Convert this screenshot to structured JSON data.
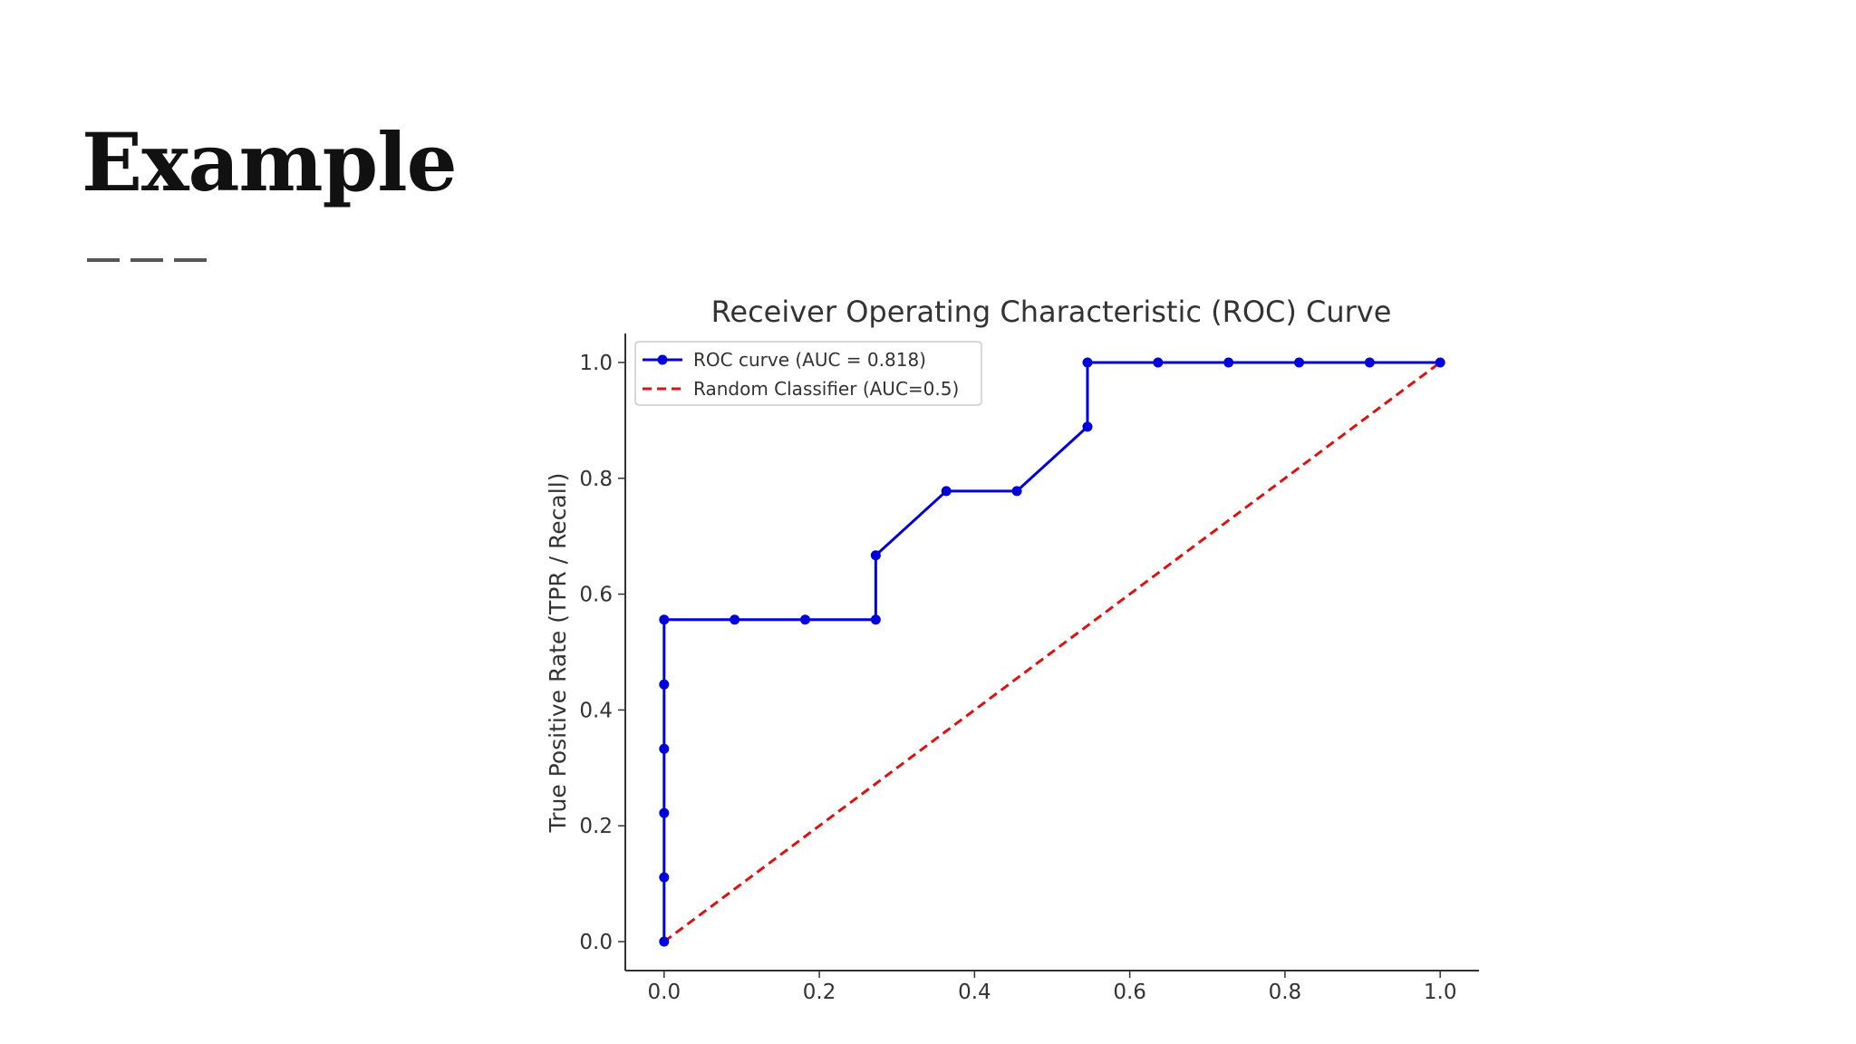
{
  "slide": {
    "title": "Example"
  },
  "chart_data": {
    "type": "line",
    "title": "Receiver Operating Characteristic (ROC) Curve",
    "xlabel": "",
    "ylabel": "True Positive Rate (TPR / Recall)",
    "xlim": [
      -0.05,
      1.05
    ],
    "ylim": [
      -0.05,
      1.05
    ],
    "xticks": [
      0.0,
      0.2,
      0.4,
      0.6,
      0.8,
      1.0
    ],
    "yticks": [
      0.0,
      0.2,
      0.4,
      0.6,
      0.8,
      1.0
    ],
    "grid": false,
    "legend_position": "top-left",
    "series": [
      {
        "name": "ROC curve (AUC = 0.818)",
        "color": "#0000dd",
        "style": "solid-with-markers",
        "x": [
          0.0,
          0.0,
          0.0,
          0.0,
          0.0,
          0.0,
          0.0909,
          0.1818,
          0.2727,
          0.2727,
          0.3636,
          0.4545,
          0.5455,
          0.5455,
          0.6364,
          0.7273,
          0.8182,
          0.9091,
          1.0
        ],
        "y": [
          0.0,
          0.111,
          0.222,
          0.333,
          0.444,
          0.556,
          0.556,
          0.556,
          0.556,
          0.667,
          0.778,
          0.778,
          0.889,
          1.0,
          1.0,
          1.0,
          1.0,
          1.0,
          1.0
        ]
      },
      {
        "name": "Random Classifier (AUC=0.5)",
        "color": "#dd1111",
        "style": "dashed",
        "x": [
          0.0,
          1.0
        ],
        "y": [
          0.0,
          1.0
        ]
      }
    ]
  }
}
